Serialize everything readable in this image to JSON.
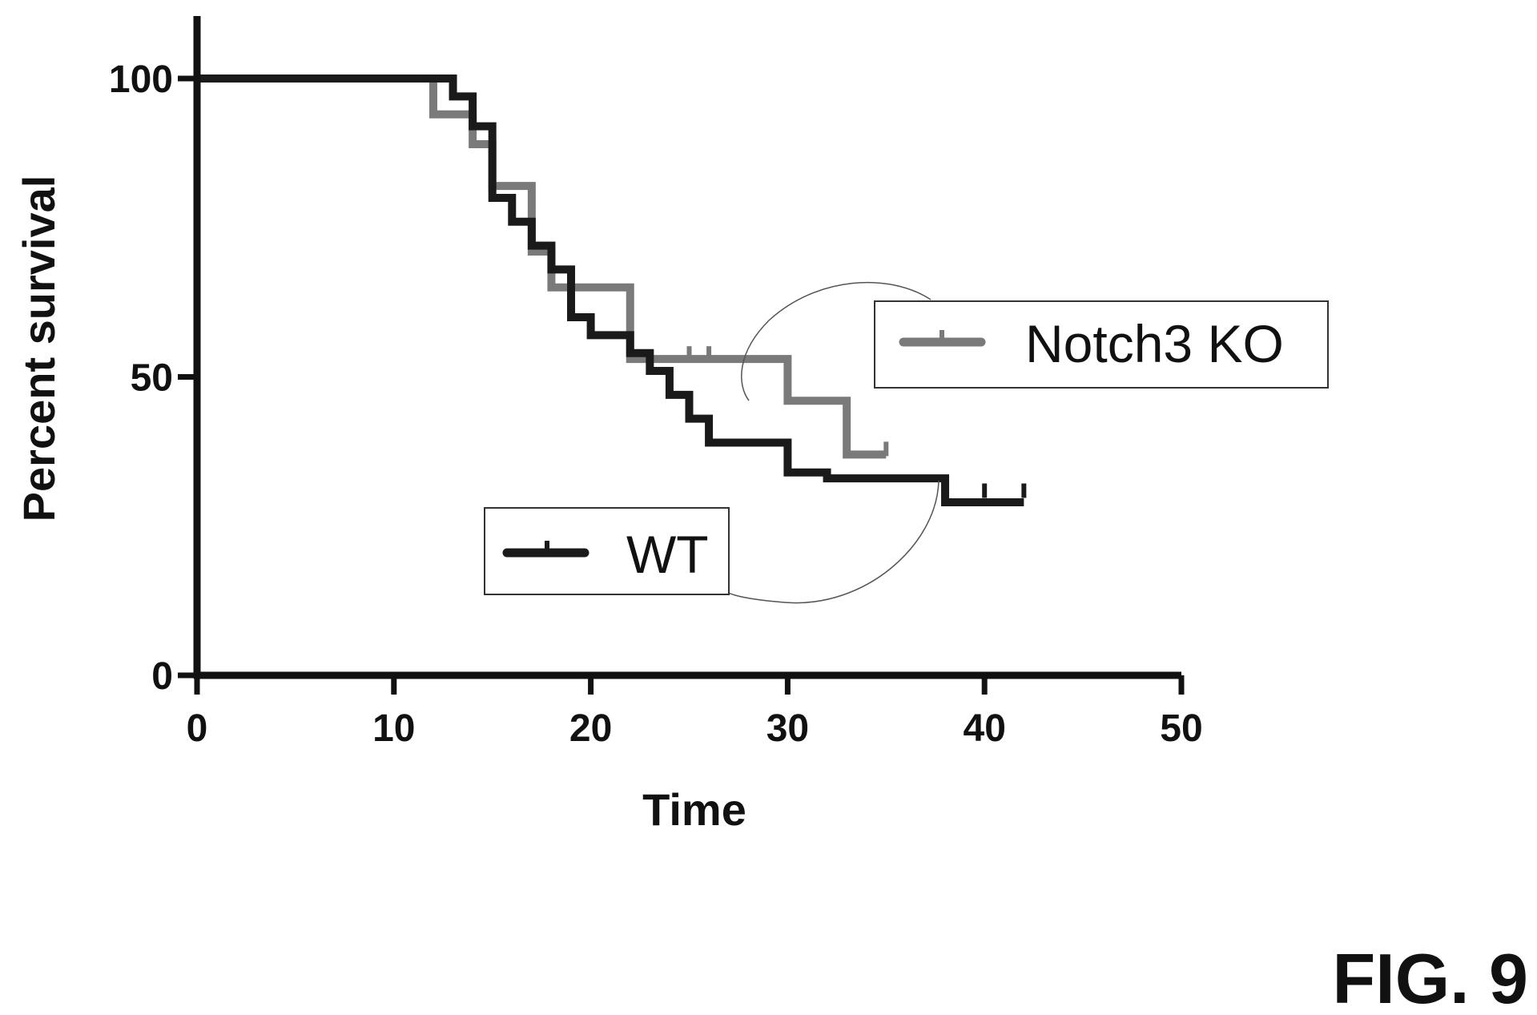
{
  "figure_label": "FIG. 9",
  "chart_data": {
    "type": "line",
    "title": "",
    "xlabel": "Time",
    "ylabel": "Percent survival",
    "xlim": [
      0,
      50
    ],
    "ylim": [
      0,
      100
    ],
    "xticks": [
      0,
      10,
      20,
      30,
      40,
      50
    ],
    "yticks": [
      0,
      50,
      100
    ],
    "grid": false,
    "colors": {
      "WT": "#1a1a1a",
      "Notch3 KO": "#7a7a7a"
    },
    "series": [
      {
        "name": "Notch3 KO",
        "step": "post",
        "x": [
          0,
          12,
          14,
          15,
          17,
          18,
          19,
          22,
          23,
          30,
          32,
          33,
          35
        ],
        "y": [
          100,
          94,
          89,
          82,
          71,
          65,
          65,
          53,
          53,
          46,
          46,
          37,
          37
        ],
        "censored": [
          [
            25,
            53
          ],
          [
            26,
            53
          ],
          [
            35,
            37
          ]
        ]
      },
      {
        "name": "WT",
        "step": "post",
        "x": [
          0,
          13,
          14,
          15,
          16,
          17,
          18,
          19,
          20,
          22,
          23,
          24,
          25,
          26,
          27,
          30,
          32,
          38,
          42
        ],
        "y": [
          100,
          97,
          92,
          80,
          76,
          72,
          68,
          60,
          57,
          54,
          51,
          47,
          43,
          39,
          39,
          34,
          33,
          29,
          29
        ],
        "censored": [
          [
            40,
            30
          ],
          [
            42,
            30
          ]
        ]
      }
    ],
    "legend": [
      {
        "label": "Notch3 KO",
        "series": "Notch3 KO",
        "placement": "right"
      },
      {
        "label": "WT",
        "series": "WT",
        "placement": "bottom-center"
      }
    ]
  }
}
